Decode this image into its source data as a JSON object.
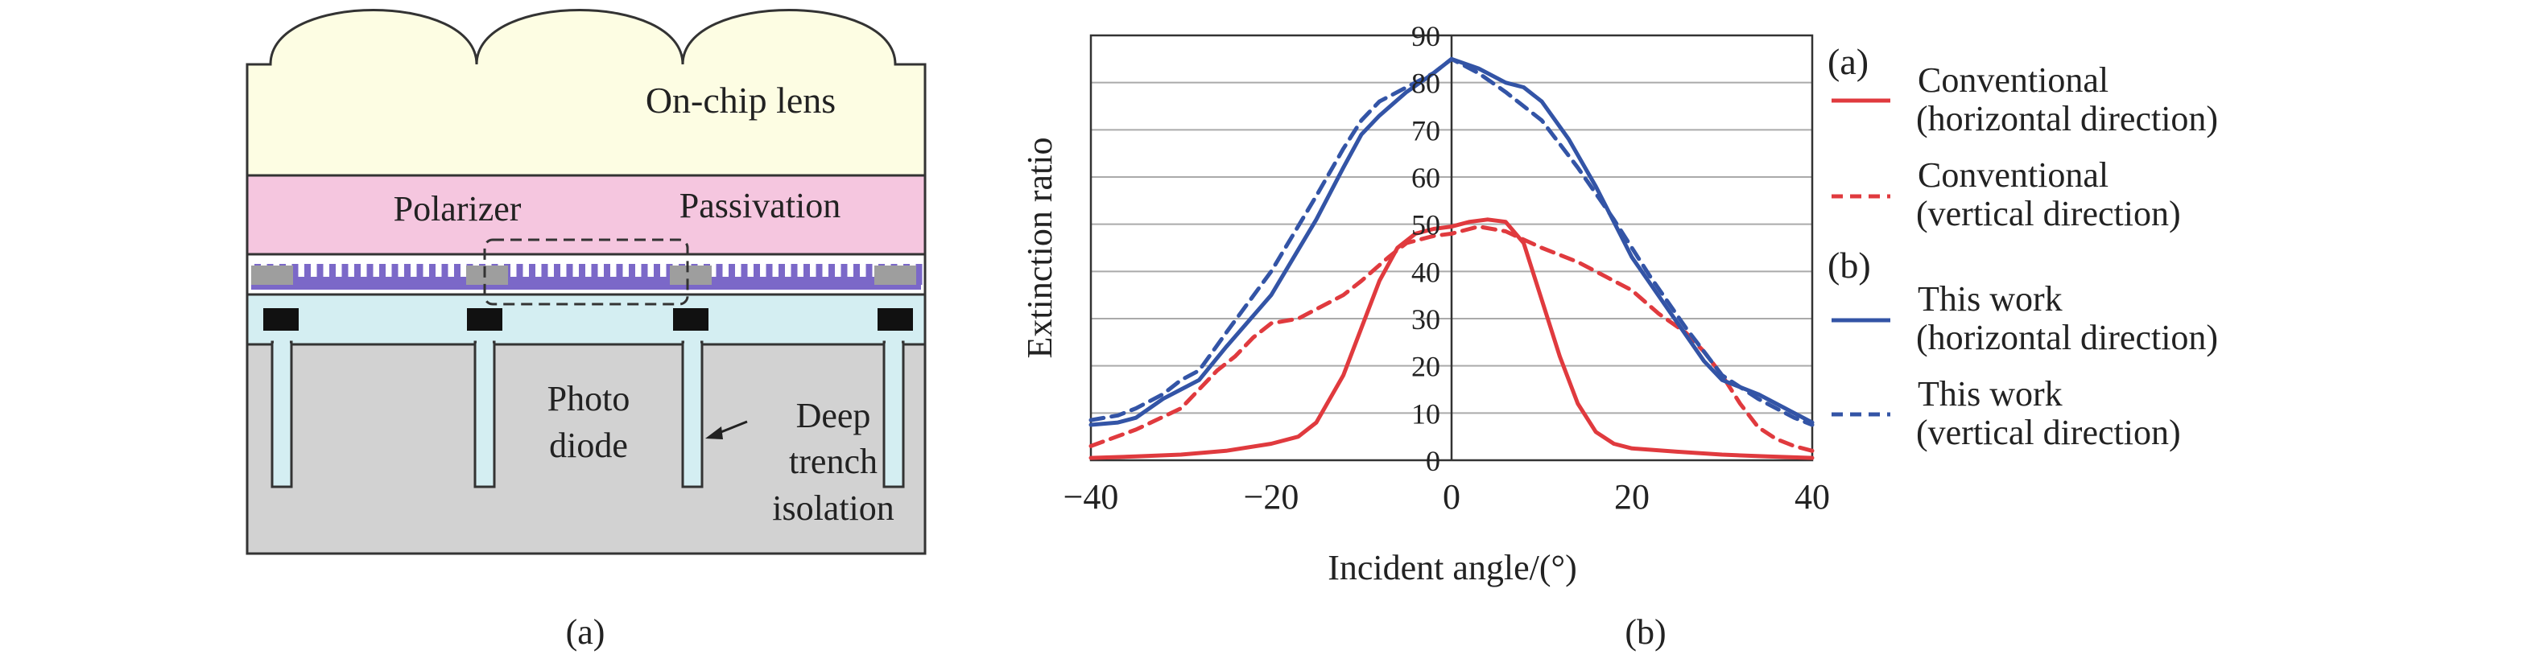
{
  "colors": {
    "lens": "#FDFDE3",
    "polarizer": "#F5C6DF",
    "substrate": "#D2D2D2",
    "isolation_layer": "#D4EEF2",
    "grid_purple": "#7B68C8",
    "conventional": "#E03A3E",
    "this_work": "#3354A6",
    "gridline": "#AAAAAA",
    "outline": "#333333"
  },
  "diagram": {
    "labels": {
      "lens": "On-chip lens",
      "polarizer": "Polarizer",
      "passivation": "Passivation",
      "photo": "Photo",
      "diode": "diode",
      "deep": "Deep",
      "trench": "trench",
      "isolation": "isolation"
    },
    "icons": [
      "arrow-icon"
    ]
  },
  "captions": {
    "a": "(a)",
    "b": "(b)"
  },
  "legend": {
    "group_a": "(a)",
    "group_b": "(b)",
    "items": [
      {
        "line1": "Conventional",
        "line2": "(horizontal direction)",
        "style": "solid",
        "color_key": "conventional"
      },
      {
        "line1": "Conventional",
        "line2": "(vertical direction)",
        "style": "dashed",
        "color_key": "conventional"
      },
      {
        "line1": "This work",
        "line2": "(horizontal direction)",
        "style": "solid",
        "color_key": "this_work"
      },
      {
        "line1": "This work",
        "line2": "(vertical direction)",
        "style": "dashed",
        "color_key": "this_work"
      }
    ]
  },
  "chart_data": {
    "type": "line",
    "xlabel": "Incident angle/(°)",
    "ylabel": "Extinction ratio",
    "xlim": [
      -40,
      40
    ],
    "ylim": [
      0,
      90
    ],
    "xticks": [
      -40,
      -20,
      0,
      20,
      40
    ],
    "yticks": [
      0,
      10,
      20,
      30,
      40,
      50,
      60,
      70,
      80,
      90
    ],
    "grid": "horizontal",
    "legend_position": "right",
    "series": [
      {
        "name": "Conventional (horizontal direction)",
        "points": [
          [
            -40,
            0.5
          ],
          [
            -35,
            0.8
          ],
          [
            -30,
            1.2
          ],
          [
            -25,
            2.0
          ],
          [
            -20,
            3.5
          ],
          [
            -17,
            5.0
          ],
          [
            -15,
            8.0
          ],
          [
            -12,
            18
          ],
          [
            -10,
            28
          ],
          [
            -8,
            38
          ],
          [
            -6,
            45
          ],
          [
            -4,
            48
          ],
          [
            -2,
            49
          ],
          [
            0,
            49.5
          ],
          [
            2,
            50.5
          ],
          [
            4,
            51
          ],
          [
            6,
            50.5
          ],
          [
            8,
            46
          ],
          [
            10,
            34
          ],
          [
            12,
            22
          ],
          [
            14,
            12
          ],
          [
            16,
            6
          ],
          [
            18,
            3.5
          ],
          [
            20,
            2.5
          ],
          [
            25,
            1.8
          ],
          [
            30,
            1.2
          ],
          [
            35,
            0.8
          ],
          [
            40,
            0.5
          ]
        ]
      },
      {
        "name": "Conventional (vertical direction)",
        "points": [
          [
            -40,
            3
          ],
          [
            -35,
            6.5
          ],
          [
            -30,
            11
          ],
          [
            -28,
            15
          ],
          [
            -26,
            19
          ],
          [
            -24,
            22
          ],
          [
            -22,
            26
          ],
          [
            -20,
            29
          ],
          [
            -17,
            30
          ],
          [
            -15,
            32
          ],
          [
            -12,
            35
          ],
          [
            -10,
            38
          ],
          [
            -7,
            43
          ],
          [
            -5,
            46
          ],
          [
            -2,
            47.5
          ],
          [
            0,
            48
          ],
          [
            3,
            49.5
          ],
          [
            6,
            48.5
          ],
          [
            10,
            45
          ],
          [
            14,
            42
          ],
          [
            17,
            39
          ],
          [
            20,
            36
          ],
          [
            23,
            31
          ],
          [
            26,
            27
          ],
          [
            28,
            23
          ],
          [
            30,
            18
          ],
          [
            32,
            12
          ],
          [
            34,
            7
          ],
          [
            36,
            4.5
          ],
          [
            38,
            3
          ],
          [
            40,
            2
          ]
        ]
      },
      {
        "name": "This work (horizontal direction)",
        "points": [
          [
            -40,
            7.5
          ],
          [
            -37,
            8
          ],
          [
            -35,
            9
          ],
          [
            -32,
            13
          ],
          [
            -30,
            15
          ],
          [
            -28,
            17
          ],
          [
            -25,
            24
          ],
          [
            -20,
            35
          ],
          [
            -15,
            51
          ],
          [
            -12,
            62
          ],
          [
            -10,
            69
          ],
          [
            -8,
            73
          ],
          [
            -5,
            78
          ],
          [
            -2,
            82
          ],
          [
            0,
            85
          ],
          [
            3,
            83
          ],
          [
            6,
            80
          ],
          [
            8,
            79
          ],
          [
            10,
            76
          ],
          [
            13,
            68
          ],
          [
            16,
            58
          ],
          [
            20,
            43
          ],
          [
            24,
            32
          ],
          [
            28,
            21
          ],
          [
            30,
            17
          ],
          [
            34,
            14
          ],
          [
            37,
            11
          ],
          [
            40,
            8
          ]
        ]
      },
      {
        "name": "This work (vertical direction)",
        "points": [
          [
            -40,
            8.5
          ],
          [
            -37,
            9.5
          ],
          [
            -35,
            11
          ],
          [
            -32,
            14
          ],
          [
            -30,
            17
          ],
          [
            -28,
            19
          ],
          [
            -25,
            27
          ],
          [
            -20,
            40
          ],
          [
            -15,
            56
          ],
          [
            -12,
            66
          ],
          [
            -10,
            72
          ],
          [
            -8,
            76
          ],
          [
            -5,
            79
          ],
          [
            -2,
            82
          ],
          [
            0,
            85
          ],
          [
            3,
            82
          ],
          [
            6,
            78
          ],
          [
            10,
            72
          ],
          [
            14,
            62
          ],
          [
            18,
            51
          ],
          [
            22,
            39
          ],
          [
            26,
            28
          ],
          [
            30,
            18
          ],
          [
            34,
            13
          ],
          [
            38,
            9
          ],
          [
            40,
            7.5
          ]
        ]
      }
    ]
  }
}
